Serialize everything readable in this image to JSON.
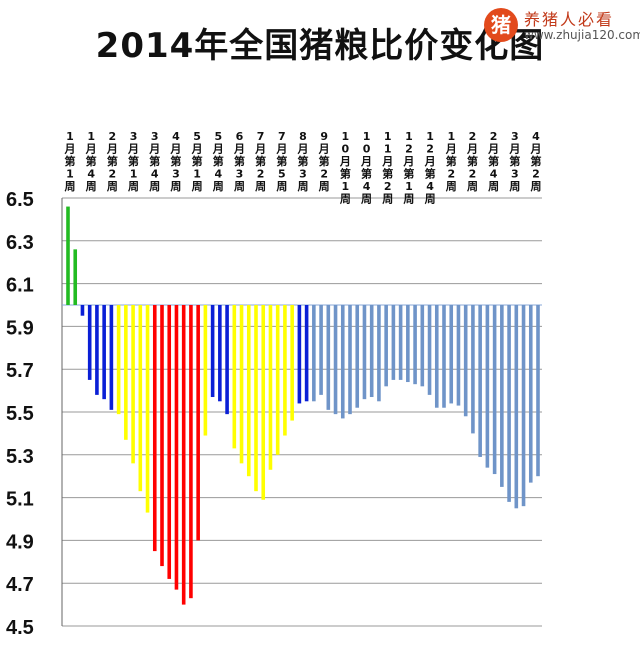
{
  "watermark": {
    "logo_char": "猪",
    "slogan": "养猪人必看",
    "url": "www.zhujia120.com"
  },
  "chart_data": {
    "type": "bar",
    "title": "2014年全国猪粮比价变化图",
    "xlabel": "",
    "ylabel": "",
    "baseline": 6.0,
    "ylim": [
      4.5,
      6.5
    ],
    "yticks": [
      "6.5",
      "6.3",
      "6.1",
      "5.9",
      "5.7",
      "5.5",
      "5.3",
      "5.1",
      "4.9",
      "4.7",
      "4.5"
    ],
    "grid": true,
    "tick_labels": [
      "1月第1周",
      "1月第4周",
      "2月第2周",
      "3月第1周",
      "3月第4周",
      "4月第3周",
      "5月第1周",
      "5月第4周",
      "6月第3周",
      "7月第2周",
      "7月第5周",
      "8月第3周",
      "9月第2周",
      "10月第1周",
      "10月第4周",
      "11月第2周",
      "12月第1周",
      "12月第4周",
      "1月第2周",
      "2月第2周",
      "2月第4周",
      "3月第3周",
      "4月第2周"
    ],
    "colors": {
      "green": "#22bb22",
      "blue": "#0a1fd6",
      "yellow": "#ffff00",
      "red": "#ff0000",
      "steel": "#6f94c8"
    },
    "values": [
      6.46,
      6.26,
      5.95,
      5.65,
      5.58,
      5.56,
      5.51,
      5.49,
      5.37,
      5.26,
      5.13,
      5.03,
      4.85,
      4.78,
      4.72,
      4.67,
      4.6,
      4.63,
      4.9,
      5.39,
      5.57,
      5.55,
      5.49,
      5.33,
      5.26,
      5.2,
      5.13,
      5.09,
      5.23,
      5.3,
      5.39,
      5.46,
      5.54,
      5.55,
      5.55,
      5.58,
      5.51,
      5.49,
      5.47,
      5.49,
      5.52,
      5.56,
      5.57,
      5.55,
      5.62,
      5.65,
      5.65,
      5.64,
      5.63,
      5.62,
      5.58,
      5.52,
      5.52,
      5.54,
      5.53,
      5.48,
      5.4,
      5.29,
      5.24,
      5.21,
      5.15,
      5.08,
      5.05,
      5.06,
      5.17,
      5.2
    ],
    "bar_colors": [
      "green",
      "green",
      "blue",
      "blue",
      "blue",
      "blue",
      "blue",
      "yellow",
      "yellow",
      "yellow",
      "yellow",
      "yellow",
      "red",
      "red",
      "red",
      "red",
      "red",
      "red",
      "red",
      "yellow",
      "blue",
      "blue",
      "blue",
      "yellow",
      "yellow",
      "yellow",
      "yellow",
      "yellow",
      "yellow",
      "yellow",
      "yellow",
      "yellow",
      "blue",
      "blue",
      "steel",
      "steel",
      "steel",
      "steel",
      "steel",
      "steel",
      "steel",
      "steel",
      "steel",
      "steel",
      "steel",
      "steel",
      "steel",
      "steel",
      "steel",
      "steel",
      "steel",
      "steel",
      "steel",
      "steel",
      "steel",
      "steel",
      "steel",
      "steel",
      "steel",
      "steel",
      "steel",
      "steel",
      "steel",
      "steel",
      "steel",
      "steel"
    ]
  }
}
